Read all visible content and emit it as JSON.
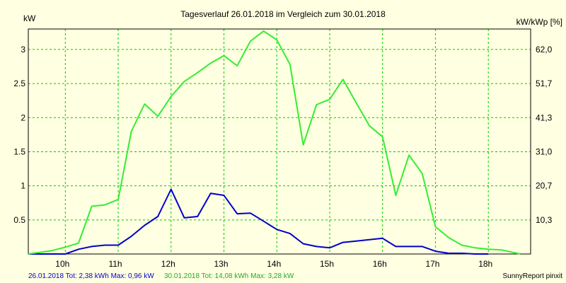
{
  "chart_data": {
    "type": "line",
    "title": "Tagesverlauf 26.01.2018 im Vergleich zum 30.01.2018",
    "ylabel_left": "kW",
    "ylabel_right": "kW/kWp [%]",
    "x_ticks": [
      "10h",
      "11h",
      "12h",
      "13h",
      "14h",
      "15h",
      "16h",
      "17h",
      "18h"
    ],
    "x_range": [
      9.3,
      18.8
    ],
    "y_ticks_left": [
      "0.5",
      "1",
      "1.5",
      "2",
      "2.5",
      "3"
    ],
    "y_ticks_right": [
      "10,3",
      "20,7",
      "31,0",
      "41,3",
      "51,7",
      "62,0"
    ],
    "ylim": [
      0,
      3.3
    ],
    "grid": true,
    "colors": {
      "background": "#ffffe1",
      "grid": "#00cc00",
      "series_blue": "#0000cc",
      "series_green": "#33ee33"
    },
    "series": [
      {
        "name": "26.01.2018",
        "color": "#0000cc",
        "x": [
          9.3,
          9.75,
          10.0,
          10.25,
          10.5,
          10.75,
          11.0,
          11.25,
          11.5,
          11.75,
          12.0,
          12.25,
          12.5,
          12.75,
          13.0,
          13.25,
          13.5,
          13.75,
          14.0,
          14.25,
          14.5,
          14.75,
          15.0,
          15.25,
          15.5,
          15.75,
          16.0,
          16.25,
          16.5,
          16.75,
          17.0,
          17.25,
          17.5,
          17.75,
          18.0
        ],
        "y": [
          0.0,
          0.0,
          0.0,
          0.07,
          0.11,
          0.13,
          0.13,
          0.26,
          0.42,
          0.55,
          0.95,
          0.53,
          0.55,
          0.89,
          0.86,
          0.59,
          0.6,
          0.48,
          0.36,
          0.3,
          0.15,
          0.11,
          0.09,
          0.17,
          0.19,
          0.21,
          0.23,
          0.11,
          0.11,
          0.11,
          0.04,
          0.01,
          0.01,
          0.0,
          0.0
        ]
      },
      {
        "name": "30.01.2018",
        "color": "#33ee33",
        "x": [
          9.3,
          9.75,
          10.0,
          10.25,
          10.5,
          10.75,
          11.0,
          11.25,
          11.5,
          11.75,
          12.0,
          12.25,
          12.5,
          12.75,
          13.0,
          13.25,
          13.5,
          13.75,
          14.0,
          14.25,
          14.5,
          14.75,
          15.0,
          15.25,
          15.5,
          15.75,
          16.0,
          16.25,
          16.5,
          16.75,
          17.0,
          17.25,
          17.5,
          17.75,
          18.0,
          18.25,
          18.6
        ],
        "y": [
          0.0,
          0.05,
          0.1,
          0.16,
          0.7,
          0.72,
          0.8,
          1.8,
          2.2,
          2.02,
          2.31,
          2.53,
          2.66,
          2.8,
          2.91,
          2.76,
          3.12,
          3.27,
          3.14,
          2.78,
          1.6,
          2.19,
          2.27,
          2.56,
          2.22,
          1.88,
          1.72,
          0.86,
          1.45,
          1.18,
          0.4,
          0.24,
          0.13,
          0.09,
          0.07,
          0.06,
          0.0
        ]
      }
    ],
    "footer": {
      "blue": "26.01.2018 Tot: 2,38 kWh Max: 0,96 kW",
      "green": "30.01.2018 Tot: 14,08 kWh Max: 3,28 kW",
      "brand": "SunnyReport pinxit"
    }
  }
}
